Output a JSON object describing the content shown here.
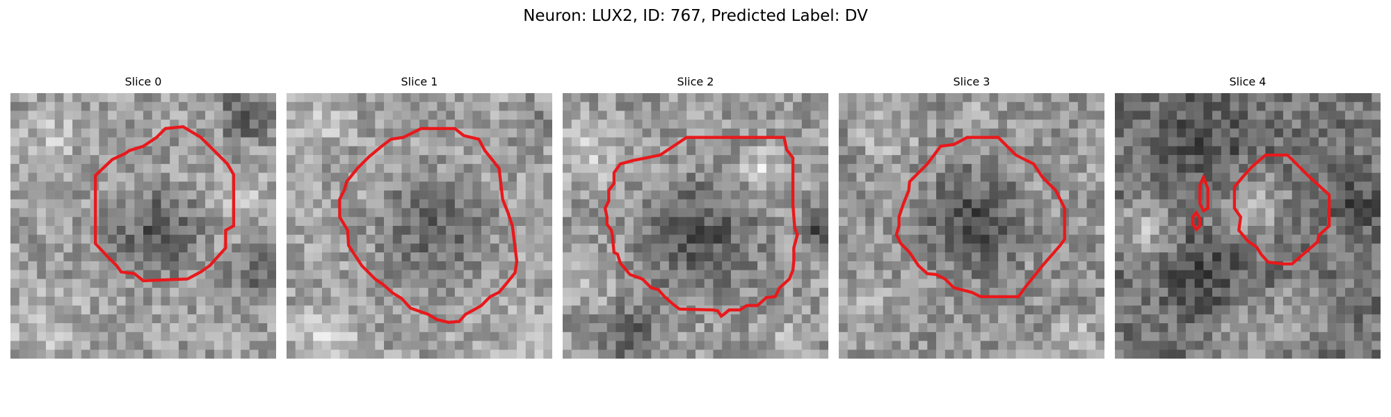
{
  "figure": {
    "title": "Neuron: LUX2, ID: 767, Predicted Label: DV",
    "contour_color": "#e8191c",
    "image_style": "grayscale microscopy crops"
  },
  "slices": [
    {
      "title": "Slice 0"
    },
    {
      "title": "Slice 1"
    },
    {
      "title": "Slice 2"
    },
    {
      "title": "Slice 3"
    },
    {
      "title": "Slice 4"
    }
  ]
}
